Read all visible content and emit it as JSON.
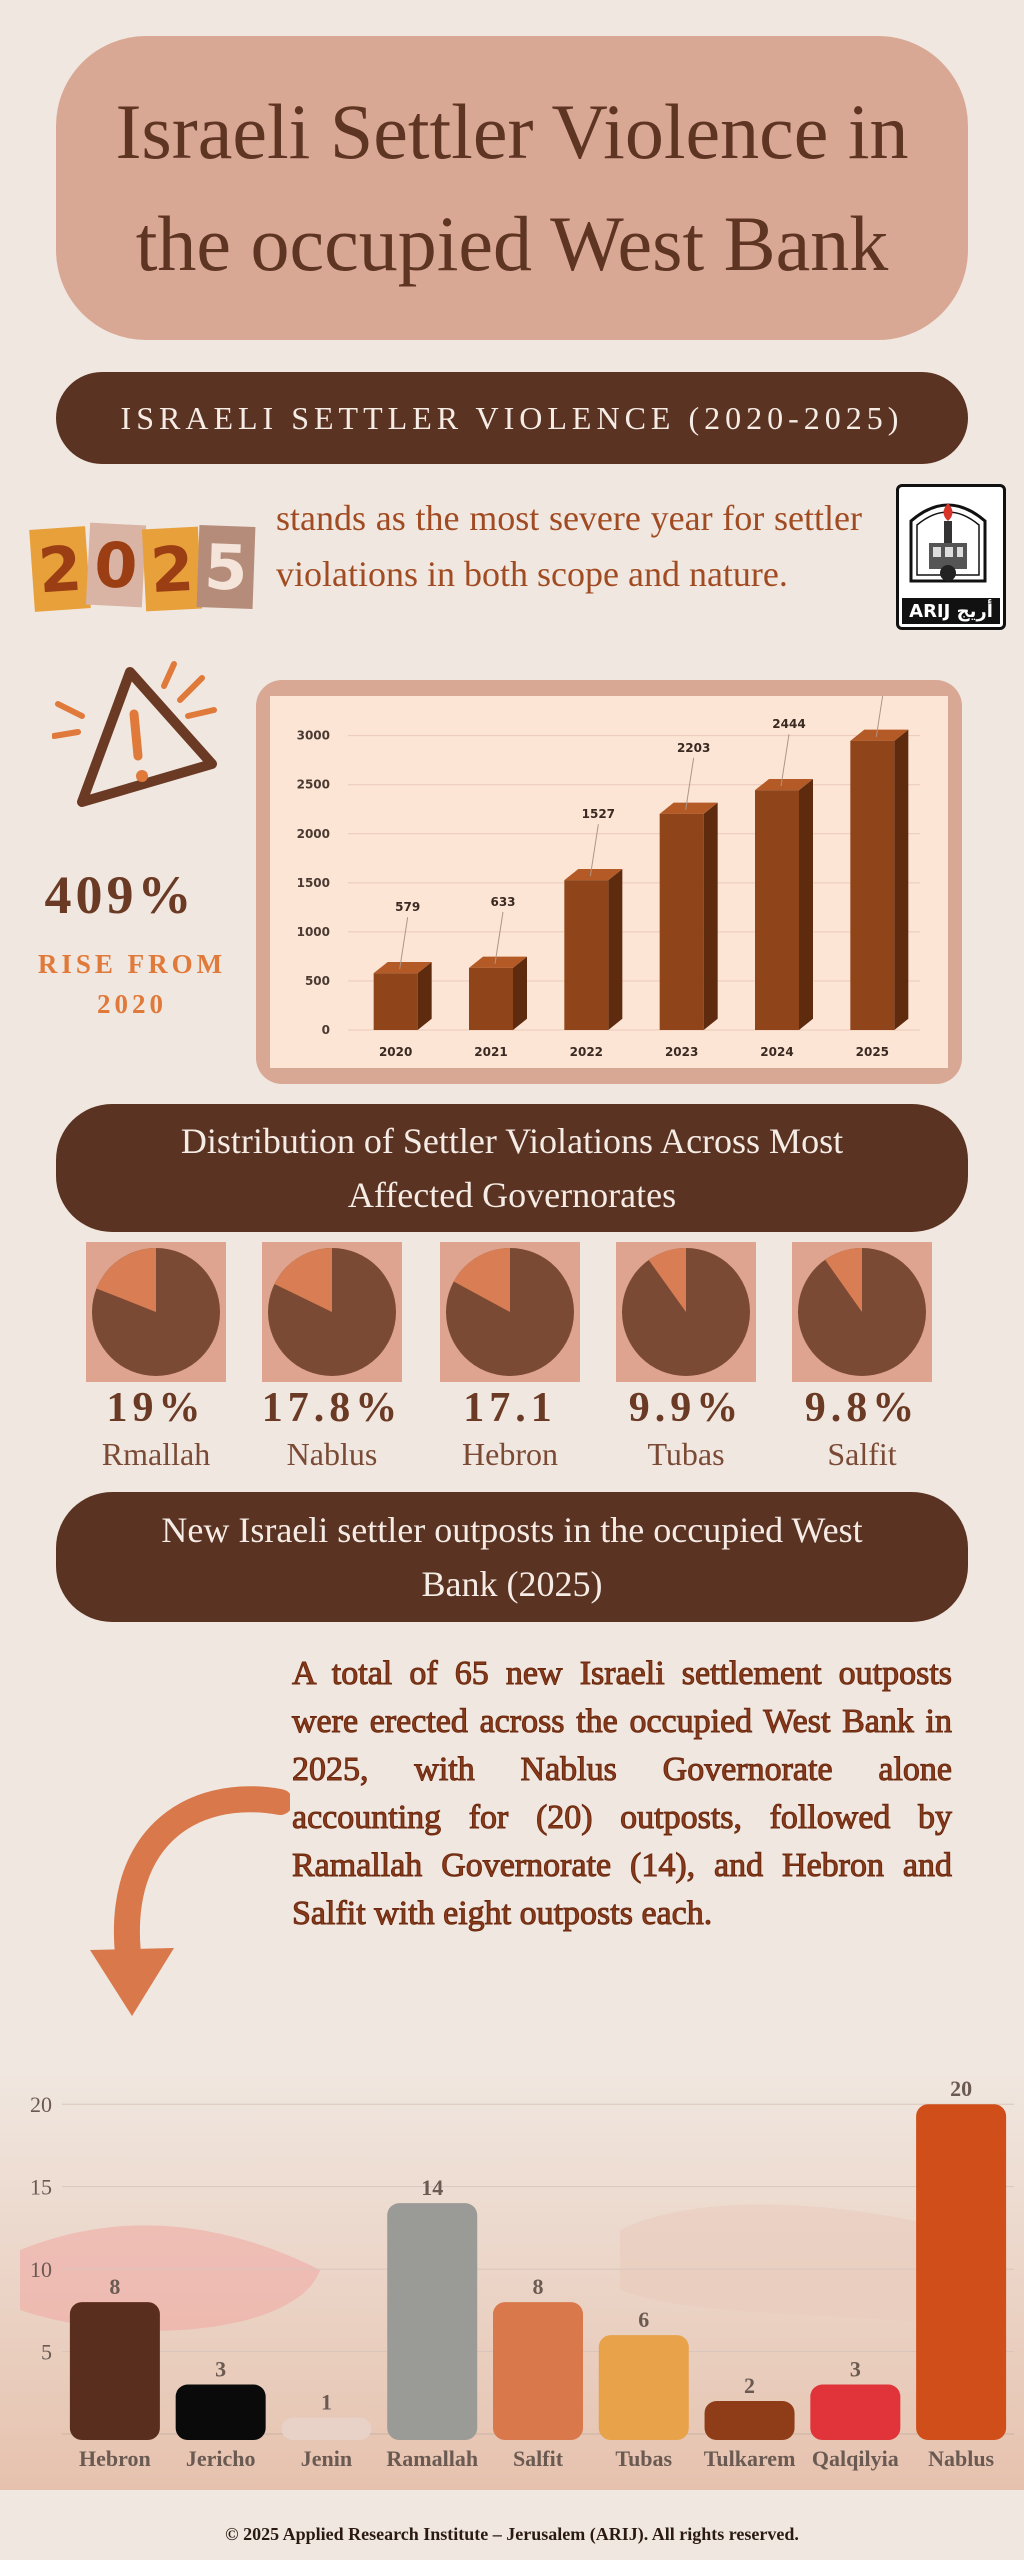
{
  "title": "Israeli Settler Violence in the occupied West Bank",
  "banner1": "ISRAELI SETTLER VIOLENCE (2020-2025)",
  "year_tiles": [
    "2",
    "0",
    "2",
    "5"
  ],
  "intro": "stands as the most severe year for settler violations in both scope and nature.",
  "logo": {
    "label": "ARIJ أريج"
  },
  "rise": {
    "value": "409%",
    "label_line1": "RISE FROM",
    "label_line2": "2020"
  },
  "colors": {
    "bar": "#8f4419",
    "bar_side": "#5e2b0f",
    "bar_top": "#b35a26",
    "pie_large": "#7b4a34",
    "pie_small": "#d97e54"
  },
  "chart_data": [
    {
      "type": "bar",
      "categories": [
        "2020",
        "2021",
        "2022",
        "2023",
        "2024",
        "2025"
      ],
      "values": [
        579,
        633,
        1527,
        2203,
        2444,
        2947
      ],
      "yticks": [
        0,
        500,
        1000,
        1500,
        2000,
        2500,
        3000
      ],
      "ylim": [
        0,
        3200
      ],
      "grid": true,
      "title": "",
      "xlabel": "",
      "ylabel": ""
    },
    {
      "type": "pie",
      "title": "Distribution of Settler Violations Across Most Affected Governorates",
      "charts": [
        {
          "label": "Rmallah",
          "value_text": "19%",
          "value": 19
        },
        {
          "label": "Nablus",
          "value_text": "17.8%",
          "value": 17.8
        },
        {
          "label": "Hebron",
          "value_text": "17.1",
          "value": 17.1
        },
        {
          "label": "Tubas",
          "value_text": "9.9%",
          "value": 9.9
        },
        {
          "label": "Salfit",
          "value_text": "9.8%",
          "value": 9.8
        }
      ]
    },
    {
      "type": "bar",
      "categories": [
        "Hebron",
        "Jericho",
        "Jenin",
        "Ramallah",
        "Salfit",
        "Tubas",
        "Tulkarem",
        "Qalqilyia",
        "Nablus"
      ],
      "values": [
        8,
        3,
        1,
        14,
        8,
        6,
        2,
        3,
        20
      ],
      "colors": [
        "#5a2e1e",
        "#0a0a0a",
        "#e8d2c8",
        "#9a9a96",
        "#d9784a",
        "#e8a24a",
        "#8f3d18",
        "#e0343a",
        "#cf4e1a"
      ],
      "yticks": [
        5,
        10,
        15,
        20
      ],
      "ylim": [
        0,
        20.5
      ],
      "grid": true,
      "title": "",
      "xlabel": "",
      "ylabel": ""
    }
  ],
  "banner2": "Distribution of Settler Violations Across Most Affected Governorates",
  "banner3": "New Israeli settler outposts in the occupied West Bank (2025)",
  "outposts_text": "A total of 65 new Israeli settlement outposts were erected across the occupied West Bank in 2025, with Nablus Governorate alone accounting for (20) outposts, followed by Ramallah Governorate (14), and Hebron and Salfit with eight outposts each.",
  "footer": "© 2025 Applied Research Institute – Jerusalem (ARIJ). All rights reserved."
}
